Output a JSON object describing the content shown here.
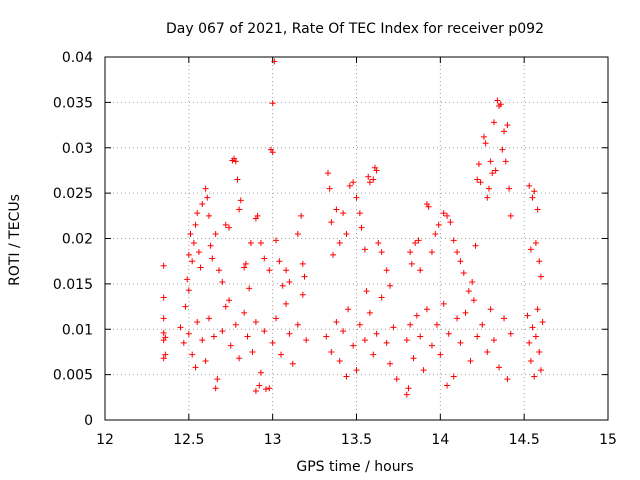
{
  "chart_data": {
    "type": "scatter",
    "title": "Day 067 of 2021, Rate Of TEC Index for receiver p092",
    "xlabel": "GPS time / hours",
    "ylabel": "ROTI / TECUs",
    "xlim": [
      12,
      15
    ],
    "ylim": [
      0,
      0.04
    ],
    "grid": true,
    "marker": "+",
    "x_ticks": [
      12,
      12.5,
      13,
      13.5,
      14,
      14.5,
      15
    ],
    "x_tick_labels": [
      "12",
      "12.5",
      "13",
      "13.5",
      "14",
      "14.5",
      "15"
    ],
    "y_ticks": [
      0,
      0.005,
      0.01,
      0.015,
      0.02,
      0.025,
      0.03,
      0.035,
      0.04
    ],
    "y_tick_labels": [
      "0",
      "0.005",
      "0.01",
      "0.015",
      "0.02",
      "0.025",
      "0.03",
      "0.035",
      "0.04"
    ],
    "series": [
      {
        "name": "ROTI",
        "color": "#ff0000",
        "points": [
          [
            12.35,
            0.017
          ],
          [
            12.35,
            0.0135
          ],
          [
            12.35,
            0.0112
          ],
          [
            12.35,
            0.0096
          ],
          [
            12.35,
            0.0088
          ],
          [
            12.35,
            0.0068
          ],
          [
            12.36,
            0.0072
          ],
          [
            12.36,
            0.0091
          ],
          [
            12.48,
            0.0125
          ],
          [
            12.49,
            0.0155
          ],
          [
            12.5,
            0.0182
          ],
          [
            12.5,
            0.0143
          ],
          [
            12.51,
            0.0205
          ],
          [
            12.52,
            0.0175
          ],
          [
            12.53,
            0.0195
          ],
          [
            12.54,
            0.0215
          ],
          [
            12.55,
            0.0228
          ],
          [
            12.56,
            0.0185
          ],
          [
            12.57,
            0.0168
          ],
          [
            12.58,
            0.0238
          ],
          [
            12.6,
            0.0255
          ],
          [
            12.61,
            0.0245
          ],
          [
            12.62,
            0.0225
          ],
          [
            12.63,
            0.0192
          ],
          [
            12.64,
            0.0178
          ],
          [
            12.66,
            0.0205
          ],
          [
            12.68,
            0.0165
          ],
          [
            12.7,
            0.0152
          ],
          [
            12.72,
            0.0215
          ],
          [
            12.74,
            0.0212
          ],
          [
            12.76,
            0.0286
          ],
          [
            12.77,
            0.0288
          ],
          [
            12.78,
            0.0285
          ],
          [
            12.79,
            0.0265
          ],
          [
            12.8,
            0.0232
          ],
          [
            12.81,
            0.0242
          ],
          [
            12.83,
            0.0168
          ],
          [
            12.84,
            0.0172
          ],
          [
            12.87,
            0.0195
          ],
          [
            12.9,
            0.0222
          ],
          [
            12.91,
            0.0225
          ],
          [
            12.93,
            0.0195
          ],
          [
            12.95,
            0.0178
          ],
          [
            12.98,
            0.0165
          ],
          [
            12.99,
            0.0298
          ],
          [
            13.0,
            0.0295
          ],
          [
            13.0,
            0.0349
          ],
          [
            13.01,
            0.0395
          ],
          [
            13.02,
            0.0198
          ],
          [
            13.04,
            0.0175
          ],
          [
            13.08,
            0.0165
          ],
          [
            13.1,
            0.0152
          ],
          [
            13.15,
            0.0205
          ],
          [
            13.17,
            0.0225
          ],
          [
            13.18,
            0.0172
          ],
          [
            13.19,
            0.0158
          ],
          [
            13.33,
            0.0272
          ],
          [
            13.34,
            0.0255
          ],
          [
            13.35,
            0.0218
          ],
          [
            13.36,
            0.0182
          ],
          [
            13.38,
            0.0232
          ],
          [
            13.4,
            0.0195
          ],
          [
            13.42,
            0.0228
          ],
          [
            13.44,
            0.0205
          ],
          [
            13.46,
            0.0258
          ],
          [
            13.48,
            0.0262
          ],
          [
            13.5,
            0.0245
          ],
          [
            13.52,
            0.0228
          ],
          [
            13.53,
            0.0212
          ],
          [
            13.55,
            0.0188
          ],
          [
            13.57,
            0.0268
          ],
          [
            13.58,
            0.0262
          ],
          [
            13.6,
            0.0265
          ],
          [
            13.61,
            0.0278
          ],
          [
            13.62,
            0.0275
          ],
          [
            13.63,
            0.0195
          ],
          [
            13.65,
            0.0185
          ],
          [
            13.68,
            0.0165
          ],
          [
            13.7,
            0.0148
          ],
          [
            13.82,
            0.0185
          ],
          [
            13.83,
            0.0172
          ],
          [
            13.85,
            0.0195
          ],
          [
            13.87,
            0.0198
          ],
          [
            13.88,
            0.0165
          ],
          [
            13.92,
            0.0238
          ],
          [
            13.93,
            0.0235
          ],
          [
            13.95,
            0.0185
          ],
          [
            13.97,
            0.0205
          ],
          [
            13.99,
            0.0215
          ],
          [
            14.02,
            0.0228
          ],
          [
            14.04,
            0.0225
          ],
          [
            14.06,
            0.0218
          ],
          [
            14.08,
            0.0198
          ],
          [
            14.1,
            0.0185
          ],
          [
            14.12,
            0.0175
          ],
          [
            14.14,
            0.0162
          ],
          [
            14.17,
            0.0142
          ],
          [
            14.19,
            0.0152
          ],
          [
            14.21,
            0.0192
          ],
          [
            14.22,
            0.0265
          ],
          [
            14.23,
            0.0282
          ],
          [
            14.24,
            0.0262
          ],
          [
            14.26,
            0.0312
          ],
          [
            14.27,
            0.0305
          ],
          [
            14.28,
            0.0245
          ],
          [
            14.29,
            0.0255
          ],
          [
            14.3,
            0.0285
          ],
          [
            14.31,
            0.0272
          ],
          [
            14.32,
            0.0328
          ],
          [
            14.33,
            0.0275
          ],
          [
            14.34,
            0.0352
          ],
          [
            14.35,
            0.0346
          ],
          [
            14.36,
            0.0348
          ],
          [
            14.37,
            0.0298
          ],
          [
            14.38,
            0.0318
          ],
          [
            14.39,
            0.0285
          ],
          [
            14.4,
            0.0325
          ],
          [
            14.41,
            0.0255
          ],
          [
            14.42,
            0.0225
          ],
          [
            14.53,
            0.0258
          ],
          [
            14.54,
            0.0188
          ],
          [
            14.55,
            0.0245
          ],
          [
            14.56,
            0.0252
          ],
          [
            14.57,
            0.0195
          ],
          [
            14.58,
            0.0232
          ],
          [
            14.59,
            0.0175
          ],
          [
            14.6,
            0.0158
          ],
          [
            12.45,
            0.0102
          ],
          [
            12.47,
            0.0085
          ],
          [
            12.5,
            0.0095
          ],
          [
            12.52,
            0.0072
          ],
          [
            12.55,
            0.0108
          ],
          [
            12.58,
            0.0088
          ],
          [
            12.6,
            0.0065
          ],
          [
            12.62,
            0.0112
          ],
          [
            12.65,
            0.0092
          ],
          [
            12.67,
            0.0045
          ],
          [
            12.7,
            0.0098
          ],
          [
            12.72,
            0.0125
          ],
          [
            12.75,
            0.0082
          ],
          [
            12.78,
            0.0105
          ],
          [
            12.8,
            0.0068
          ],
          [
            12.83,
            0.0118
          ],
          [
            12.85,
            0.0092
          ],
          [
            12.88,
            0.0075
          ],
          [
            12.9,
            0.0108
          ],
          [
            12.93,
            0.0052
          ],
          [
            12.95,
            0.0098
          ],
          [
            12.98,
            0.0035
          ],
          [
            13.0,
            0.0085
          ],
          [
            13.02,
            0.0112
          ],
          [
            13.05,
            0.0072
          ],
          [
            13.08,
            0.0128
          ],
          [
            13.1,
            0.0095
          ],
          [
            13.12,
            0.0062
          ],
          [
            13.15,
            0.0105
          ],
          [
            13.18,
            0.0138
          ],
          [
            13.2,
            0.0088
          ],
          [
            12.66,
            0.0035
          ],
          [
            12.9,
            0.0032
          ],
          [
            12.92,
            0.0038
          ],
          [
            12.96,
            0.0034
          ],
          [
            12.54,
            0.0058
          ],
          [
            12.74,
            0.0132
          ],
          [
            12.86,
            0.0145
          ],
          [
            13.06,
            0.0148
          ],
          [
            13.32,
            0.0092
          ],
          [
            13.35,
            0.0075
          ],
          [
            13.38,
            0.0108
          ],
          [
            13.4,
            0.0065
          ],
          [
            13.42,
            0.0098
          ],
          [
            13.45,
            0.0122
          ],
          [
            13.48,
            0.0082
          ],
          [
            13.5,
            0.0055
          ],
          [
            13.52,
            0.0105
          ],
          [
            13.55,
            0.0088
          ],
          [
            13.58,
            0.0118
          ],
          [
            13.6,
            0.0072
          ],
          [
            13.62,
            0.0095
          ],
          [
            13.65,
            0.0135
          ],
          [
            13.68,
            0.0085
          ],
          [
            13.7,
            0.0062
          ],
          [
            13.72,
            0.0102
          ],
          [
            13.74,
            0.0045
          ],
          [
            13.44,
            0.0048
          ],
          [
            13.56,
            0.0142
          ],
          [
            13.8,
            0.0088
          ],
          [
            13.82,
            0.0105
          ],
          [
            13.84,
            0.0068
          ],
          [
            13.86,
            0.0115
          ],
          [
            13.88,
            0.0092
          ],
          [
            13.9,
            0.0055
          ],
          [
            13.92,
            0.0122
          ],
          [
            13.95,
            0.0082
          ],
          [
            13.98,
            0.0105
          ],
          [
            14.0,
            0.0072
          ],
          [
            14.02,
            0.0128
          ],
          [
            14.05,
            0.0095
          ],
          [
            14.08,
            0.0048
          ],
          [
            14.1,
            0.0112
          ],
          [
            14.12,
            0.0085
          ],
          [
            14.15,
            0.0118
          ],
          [
            14.18,
            0.0065
          ],
          [
            14.2,
            0.0132
          ],
          [
            14.22,
            0.0092
          ],
          [
            14.25,
            0.0105
          ],
          [
            14.28,
            0.0075
          ],
          [
            14.3,
            0.0122
          ],
          [
            14.32,
            0.0088
          ],
          [
            14.35,
            0.0058
          ],
          [
            14.38,
            0.0112
          ],
          [
            14.4,
            0.0045
          ],
          [
            14.42,
            0.0095
          ],
          [
            13.8,
            0.0028
          ],
          [
            13.81,
            0.0035
          ],
          [
            14.04,
            0.0038
          ],
          [
            14.52,
            0.0115
          ],
          [
            14.53,
            0.0085
          ],
          [
            14.54,
            0.0065
          ],
          [
            14.55,
            0.0102
          ],
          [
            14.56,
            0.0048
          ],
          [
            14.57,
            0.0092
          ],
          [
            14.58,
            0.0122
          ],
          [
            14.59,
            0.0075
          ],
          [
            14.6,
            0.0055
          ],
          [
            14.61,
            0.0108
          ]
        ]
      }
    ]
  }
}
